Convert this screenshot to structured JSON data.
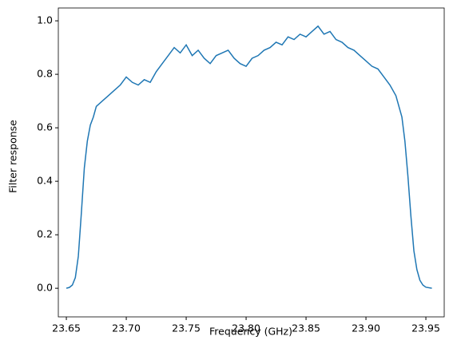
{
  "chart_data": {
    "type": "line",
    "x_label": "Frequency (GHz)",
    "y_label": "Filter response",
    "x": [
      23.65,
      23.6525,
      23.655,
      23.6575,
      23.66,
      23.6625,
      23.665,
      23.6675,
      23.67,
      23.6725,
      23.675,
      23.68,
      23.685,
      23.69,
      23.695,
      23.7,
      23.705,
      23.71,
      23.715,
      23.72,
      23.725,
      23.73,
      23.735,
      23.74,
      23.745,
      23.75,
      23.755,
      23.76,
      23.765,
      23.77,
      23.775,
      23.78,
      23.785,
      23.79,
      23.795,
      23.8,
      23.805,
      23.81,
      23.815,
      23.82,
      23.825,
      23.83,
      23.835,
      23.84,
      23.845,
      23.85,
      23.855,
      23.86,
      23.865,
      23.87,
      23.875,
      23.88,
      23.885,
      23.89,
      23.895,
      23.9,
      23.905,
      23.91,
      23.915,
      23.92,
      23.925,
      23.93,
      23.9325,
      23.935,
      23.9375,
      23.94,
      23.9425,
      23.945,
      23.9475,
      23.95,
      23.955
    ],
    "series": [
      {
        "color": "#1f77b4",
        "values": [
          0,
          0.003,
          0.012,
          0.04,
          0.12,
          0.28,
          0.45,
          0.55,
          0.61,
          0.64,
          0.68,
          0.7,
          0.72,
          0.74,
          0.76,
          0.79,
          0.77,
          0.76,
          0.78,
          0.77,
          0.81,
          0.84,
          0.87,
          0.9,
          0.88,
          0.91,
          0.87,
          0.89,
          0.86,
          0.84,
          0.87,
          0.88,
          0.89,
          0.86,
          0.84,
          0.83,
          0.86,
          0.87,
          0.89,
          0.9,
          0.92,
          0.91,
          0.94,
          0.93,
          0.95,
          0.94,
          0.96,
          0.98,
          0.95,
          0.96,
          0.93,
          0.92,
          0.9,
          0.89,
          0.87,
          0.85,
          0.83,
          0.82,
          0.79,
          0.76,
          0.72,
          0.64,
          0.55,
          0.42,
          0.27,
          0.14,
          0.07,
          0.03,
          0.012,
          0.004,
          0
        ]
      }
    ],
    "xlim": [
      23.6433,
      23.9653
    ],
    "ylim": [
      -0.107,
      1.048
    ],
    "xticks": [
      {
        "value": 23.65,
        "label": "23.65"
      },
      {
        "value": 23.7,
        "label": "23.70"
      },
      {
        "value": 23.75,
        "label": "23.75"
      },
      {
        "value": 23.8,
        "label": "23.80"
      },
      {
        "value": 23.85,
        "label": "23.85"
      },
      {
        "value": 23.9,
        "label": "23.90"
      },
      {
        "value": 23.95,
        "label": "23.95"
      }
    ],
    "yticks": [
      {
        "value": 0,
        "label": "0.0"
      },
      {
        "value": 0.2,
        "label": "0.2"
      },
      {
        "value": 0.4,
        "label": "0.4"
      },
      {
        "value": 0.6,
        "label": "0.6"
      },
      {
        "value": 0.8,
        "label": "0.8"
      },
      {
        "value": 1,
        "label": "1.0"
      }
    ]
  }
}
